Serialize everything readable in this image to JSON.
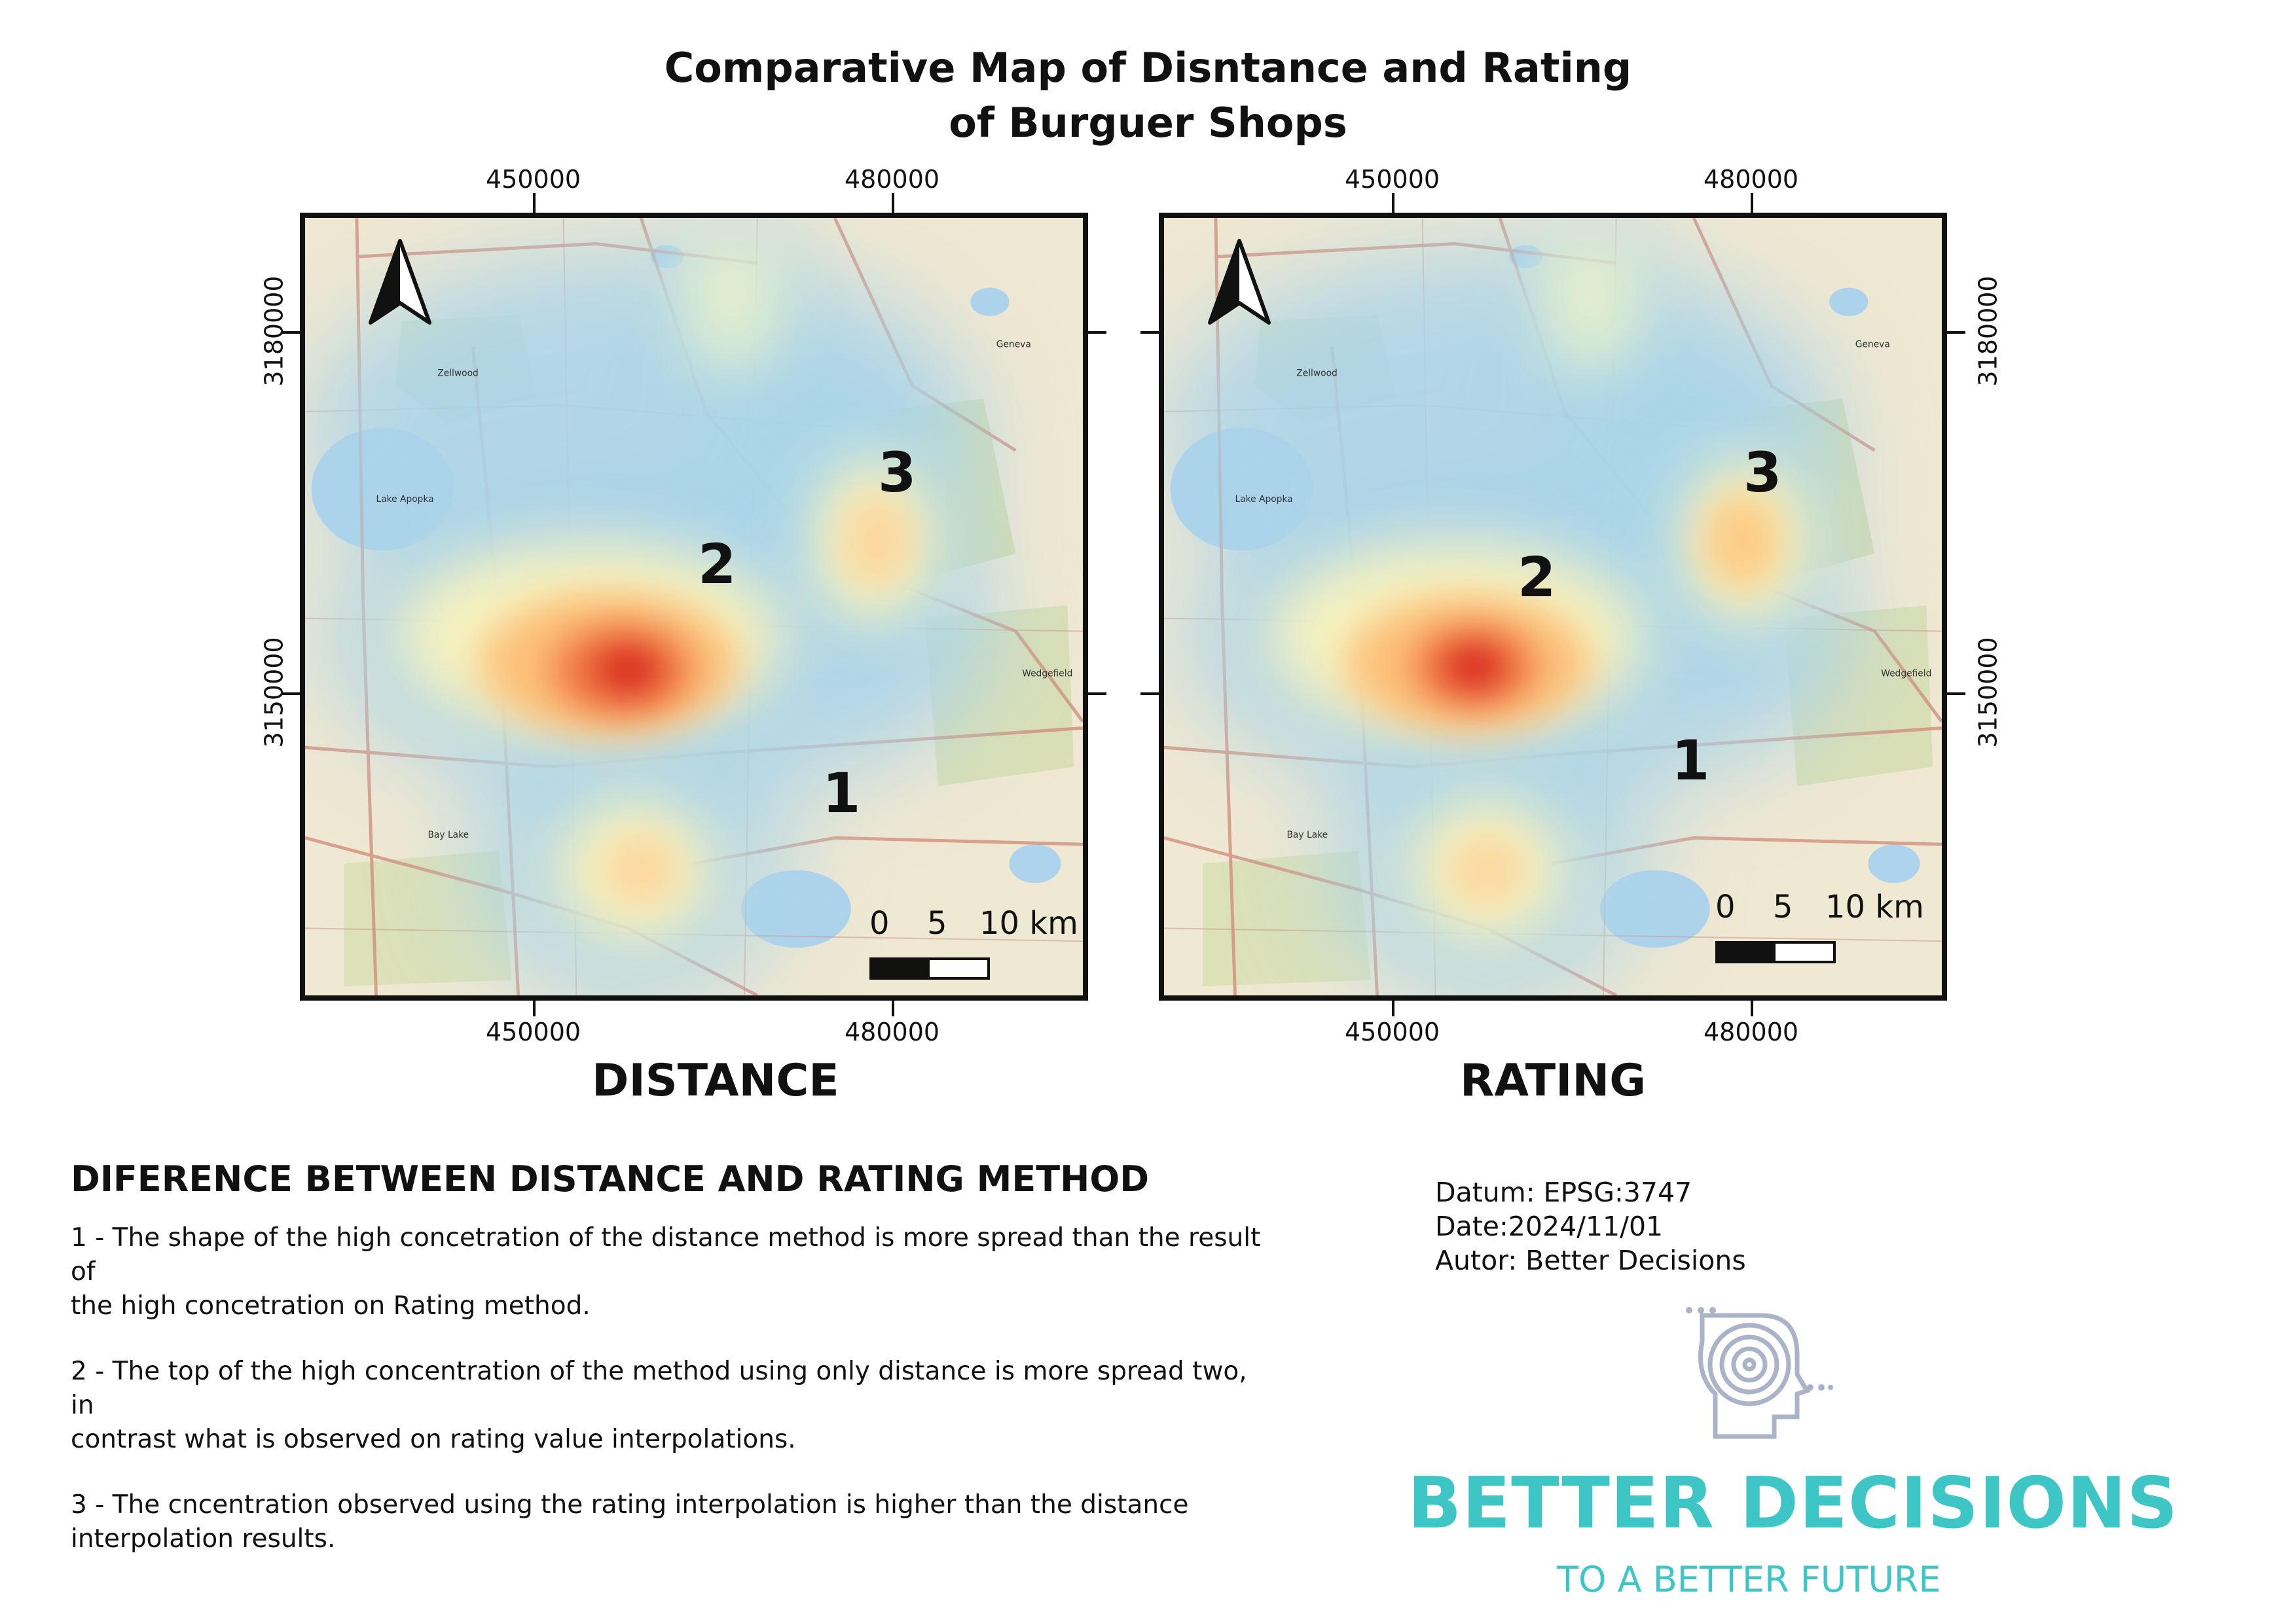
{
  "title": {
    "line1": "Comparative Map of Disntance and Rating",
    "line2": "of Burguer Shops"
  },
  "coordinates": {
    "x_labels": [
      "450000",
      "480000"
    ],
    "y_labels": [
      "3180000",
      "3150000"
    ]
  },
  "maps": [
    {
      "caption": "DISTANCE",
      "hotspots": [
        {
          "label": "1"
        },
        {
          "label": "2"
        },
        {
          "label": "3"
        }
      ],
      "scale": {
        "labels": [
          "0",
          "5",
          "10 km"
        ]
      }
    },
    {
      "caption": "RATING",
      "hotspots": [
        {
          "label": "1"
        },
        {
          "label": "2"
        },
        {
          "label": "3"
        }
      ],
      "scale": {
        "labels": [
          "0",
          "5",
          "10 km"
        ]
      }
    }
  ],
  "basemap_labels": {
    "places": [
      "Zellwood",
      "Geneva",
      "Lake Apopka",
      "Wedgefield",
      "Bay Lake"
    ]
  },
  "section": {
    "heading": "DIFERENCE BETWEEN DISTANCE AND RATING METHOD",
    "notes": [
      {
        "line1": "1 - The shape of the high concetration of the distance method is more spread than the result of",
        "line2": "the high concetration on Rating method."
      },
      {
        "line1": "2 - The top of the high concentration of the method using only distance is more spread two, in",
        "line2": "contrast what is observed on rating value interpolations."
      },
      {
        "line1": "3 - The cncentration observed using the rating interpolation is higher than the distance",
        "line2": "interpolation results."
      }
    ]
  },
  "metadata": {
    "datum": "Datum: EPSG:3747",
    "date": "Date:2024/11/01",
    "author": "Autor: Better Decisions"
  },
  "brand": {
    "name": "BETTER DECISIONS",
    "tagline": "TO A BETTER FUTURE",
    "color": "#3ec6c7"
  },
  "heatmap_colors": {
    "low": "#a9d4ea",
    "mid": "#fbf3bd",
    "high": "#fdbd73",
    "peak": "#d7191c"
  }
}
